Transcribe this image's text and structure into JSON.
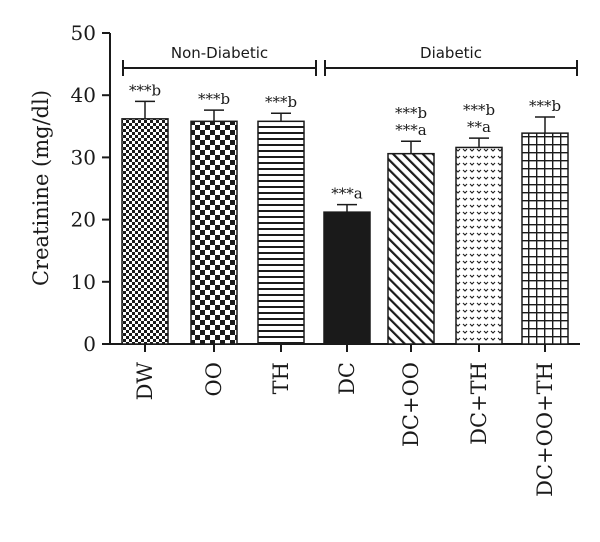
{
  "chart_data": {
    "type": "bar",
    "ylabel": "Creatinine (mg/dl)",
    "xlabel": "",
    "ylim": [
      0,
      50
    ],
    "yticks": [
      0,
      10,
      20,
      30,
      40,
      50
    ],
    "categories": [
      "DW",
      "OO",
      "TH",
      "DC",
      "DC+OO",
      "DC+TH",
      "DC+OO+TH"
    ],
    "values": [
      36.2,
      35.8,
      35.8,
      21.2,
      30.6,
      31.6,
      33.9
    ],
    "errors": [
      2.8,
      1.8,
      1.3,
      1.2,
      2.0,
      1.5,
      2.6
    ],
    "patterns": [
      "checker-fine",
      "checker-coarse",
      "horizontal-lines",
      "solid",
      "diagonal-lines",
      "dots",
      "grid"
    ],
    "significance": [
      [
        "***b"
      ],
      [
        "***b"
      ],
      [
        "***b"
      ],
      [
        "***a"
      ],
      [
        "***b",
        "***a"
      ],
      [
        "***b",
        "**a"
      ],
      [
        "***b"
      ]
    ],
    "groups": [
      {
        "label": "Non-Diabetic",
        "from": 0,
        "to": 2
      },
      {
        "label": "Diabetic",
        "from": 3,
        "to": 6
      }
    ],
    "colors": {
      "ink": "#1a1a1a",
      "fill": "#ffffff"
    }
  }
}
